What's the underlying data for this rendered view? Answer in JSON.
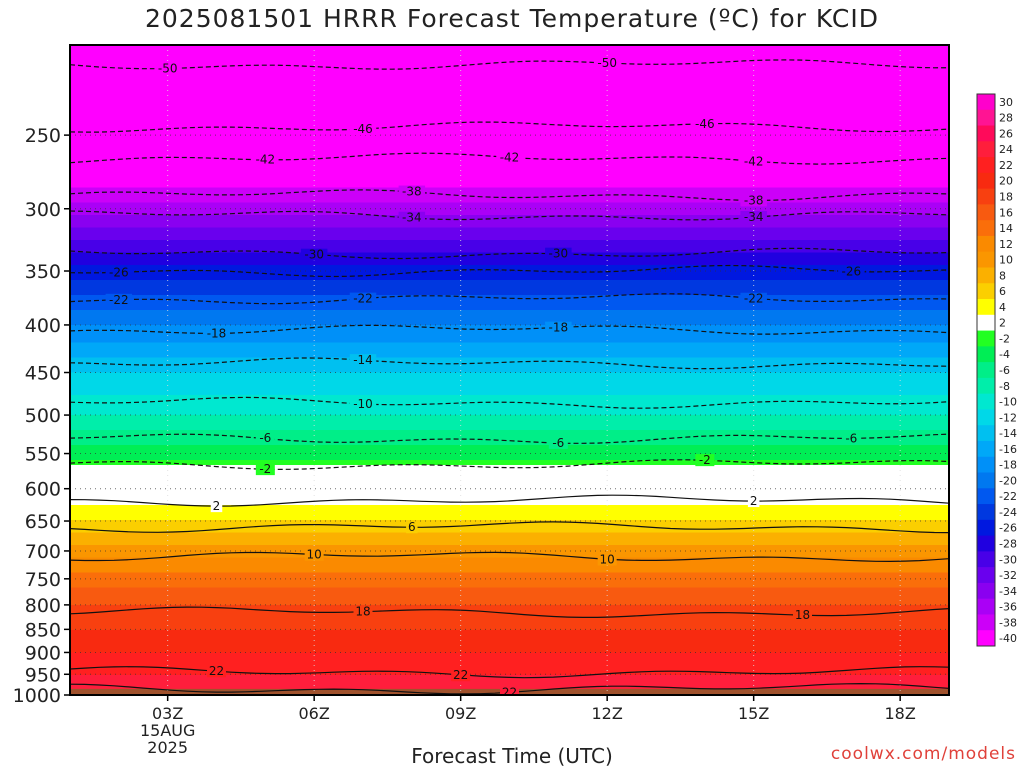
{
  "title": "2025081501 HRRR Forecast Temperature (ºC) for KCID",
  "xlabel": "Forecast Time (UTC)",
  "credit": "coolwx.com/models",
  "chart_data": {
    "type": "heatmap",
    "title": "2025081501 HRRR Forecast Temperature (ºC) for KCID",
    "xlabel": "Forecast Time (UTC)",
    "ylabel": "",
    "x_range_hours": [
      1,
      19
    ],
    "y_range_hpa": [
      1000,
      200
    ],
    "y_log_scale": true,
    "x_ticks": [
      {
        "hour": 3,
        "label": "03Z",
        "sublabels": [
          "15AUG",
          "2025"
        ]
      },
      {
        "hour": 6,
        "label": "06Z"
      },
      {
        "hour": 9,
        "label": "09Z"
      },
      {
        "hour": 12,
        "label": "12Z"
      },
      {
        "hour": 15,
        "label": "15Z"
      },
      {
        "hour": 18,
        "label": "18Z"
      }
    ],
    "y_ticks": [
      250,
      300,
      350,
      400,
      450,
      500,
      550,
      600,
      650,
      700,
      750,
      800,
      850,
      900,
      950,
      1000
    ],
    "grid": true,
    "ground_level_hpa": 985,
    "ground_color": "#a0522d",
    "colorbar": {
      "labels": [
        "30",
        "28",
        "26",
        "24",
        "22",
        "20",
        "18",
        "16",
        "14",
        "12",
        "10",
        "8",
        "6",
        "4",
        "2",
        "-2",
        "-4",
        "-6",
        "-8",
        "-10",
        "-12",
        "-14",
        "-16",
        "-18",
        "-20",
        "-22",
        "-24",
        "-26",
        "-28",
        "-30",
        "-32",
        "-34",
        "-36",
        "-38",
        "-40"
      ],
      "colors": [
        "#ff00cc",
        "#ff1493",
        "#ff0a5a",
        "#ff1e3c",
        "#ff2020",
        "#f82a10",
        "#f84010",
        "#f85a10",
        "#fa6e0a",
        "#fa8a00",
        "#fa9600",
        "#fbb000",
        "#fbcf00",
        "#ffff00",
        "#ffffff",
        "#22ff22",
        "#00ee55",
        "#00ee88",
        "#00eeaa",
        "#00e8d0",
        "#00d8e8",
        "#00c0f0",
        "#00a8f8",
        "#0090f8",
        "#0078f0",
        "#0058f0",
        "#0038e0",
        "#0018e0",
        "#2000e0",
        "#4800e8",
        "#6a00ee",
        "#8a00f0",
        "#aa00f6",
        "#cc00f8",
        "#ff00ff"
      ]
    },
    "contours": [
      {
        "value": "-50",
        "pressure": 210,
        "dashed": true,
        "labels_at_hours": [
          3,
          12
        ]
      },
      {
        "value": "-46",
        "pressure": 245,
        "dashed": true,
        "labels_at_hours": [
          7,
          14
        ]
      },
      {
        "value": "-42",
        "pressure": 265,
        "dashed": true,
        "labels_at_hours": [
          5,
          10,
          15
        ]
      },
      {
        "value": "-38",
        "pressure": 290,
        "dashed": true,
        "labels_at_hours": [
          8,
          15
        ]
      },
      {
        "value": "-34",
        "pressure": 305,
        "dashed": true,
        "labels_at_hours": [
          8,
          15
        ]
      },
      {
        "value": "-30",
        "pressure": 335,
        "dashed": true,
        "labels_at_hours": [
          6,
          11
        ]
      },
      {
        "value": "-26",
        "pressure": 350,
        "dashed": true,
        "labels_at_hours": [
          2,
          17
        ]
      },
      {
        "value": "-22",
        "pressure": 375,
        "dashed": true,
        "labels_at_hours": [
          2,
          7,
          15
        ]
      },
      {
        "value": "-18",
        "pressure": 405,
        "dashed": true,
        "labels_at_hours": [
          4,
          11
        ]
      },
      {
        "value": "-14",
        "pressure": 440,
        "dashed": true,
        "labels_at_hours": [
          7
        ]
      },
      {
        "value": "-10",
        "pressure": 485,
        "dashed": true,
        "labels_at_hours": [
          7
        ]
      },
      {
        "value": "-6",
        "pressure": 530,
        "dashed": true,
        "labels_at_hours": [
          5,
          11,
          17
        ]
      },
      {
        "value": "-2",
        "pressure": 565,
        "dashed": true,
        "labels_at_hours": [
          5,
          14
        ]
      },
      {
        "value": "2",
        "pressure": 618,
        "dashed": false,
        "labels_at_hours": [
          4,
          15
        ]
      },
      {
        "value": "6",
        "pressure": 660,
        "dashed": false,
        "labels_at_hours": [
          8
        ]
      },
      {
        "value": "10",
        "pressure": 710,
        "dashed": false,
        "labels_at_hours": [
          6,
          12
        ]
      },
      {
        "value": "18",
        "pressure": 815,
        "dashed": false,
        "labels_at_hours": [
          7,
          16
        ]
      },
      {
        "value": "22",
        "pressure": 945,
        "dashed": false,
        "labels_at_hours": [
          4,
          9
        ]
      },
      {
        "value": "22",
        "pressure": 985,
        "dashed": false,
        "labels_at_hours": [
          10
        ]
      }
    ],
    "temperature_profile": [
      {
        "pressure": 200,
        "temp": -56
      },
      {
        "pressure": 250,
        "temp": -46
      },
      {
        "pressure": 300,
        "temp": -36
      },
      {
        "pressure": 350,
        "temp": -26
      },
      {
        "pressure": 400,
        "temp": -19
      },
      {
        "pressure": 450,
        "temp": -13
      },
      {
        "pressure": 500,
        "temp": -9
      },
      {
        "pressure": 550,
        "temp": -4
      },
      {
        "pressure": 575,
        "temp": -1
      },
      {
        "pressure": 600,
        "temp": 1
      },
      {
        "pressure": 650,
        "temp": 5
      },
      {
        "pressure": 700,
        "temp": 10
      },
      {
        "pressure": 750,
        "temp": 14
      },
      {
        "pressure": 800,
        "temp": 17
      },
      {
        "pressure": 850,
        "temp": 19
      },
      {
        "pressure": 900,
        "temp": 21
      },
      {
        "pressure": 950,
        "temp": 23
      },
      {
        "pressure": 1000,
        "temp": 25
      }
    ]
  }
}
